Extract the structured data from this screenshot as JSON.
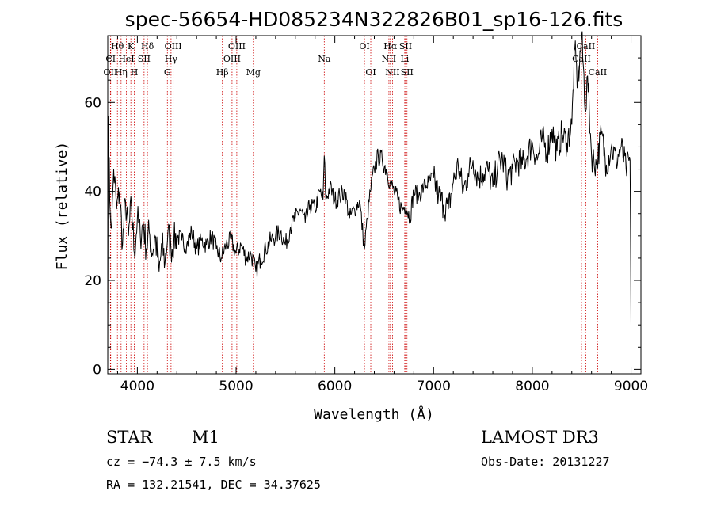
{
  "chart_data": {
    "type": "line",
    "title": "spec-56654-HD085234N322826B01_sp16-126.fits",
    "xlabel": "Wavelength (Å)",
    "ylabel": "Flux (relative)",
    "xlim": [
      3700,
      9100
    ],
    "ylim": [
      -1,
      75
    ],
    "xticks": [
      4000,
      5000,
      6000,
      7000,
      8000,
      9000
    ],
    "yticks": [
      0,
      20,
      40,
      60
    ],
    "grid": false,
    "legend": "none",
    "line_color": "#000000",
    "marker_color": "#cc0000",
    "series": [
      {
        "x": [
          3700,
          3705,
          3720,
          3740,
          3760,
          3790,
          3820,
          3850,
          3880,
          3910,
          3940,
          3970,
          4000,
          4030,
          4060,
          4090,
          4120,
          4150,
          4180,
          4220,
          4250,
          4280,
          4310,
          4340,
          4370,
          4400,
          4450,
          4500,
          4550,
          4600,
          4650,
          4700,
          4750,
          4800,
          4850,
          4900,
          4950,
          5000,
          5050,
          5100,
          5150,
          5200,
          5250,
          5300,
          5350,
          5400,
          5450,
          5500,
          5550,
          5600,
          5650,
          5700,
          5750,
          5800,
          5850,
          5880,
          5893,
          5910,
          5950,
          6000,
          6050,
          6100,
          6150,
          6200,
          6250,
          6300,
          6330,
          6360,
          6400,
          6440,
          6480,
          6520,
          6560,
          6600,
          6640,
          6680,
          6720,
          6760,
          6800,
          6850,
          6900,
          6950,
          7000,
          7050,
          7100,
          7150,
          7200,
          7250,
          7300,
          7350,
          7400,
          7450,
          7500,
          7550,
          7600,
          7650,
          7700,
          7750,
          7800,
          7850,
          7900,
          7950,
          8000,
          8050,
          8100,
          8150,
          8200,
          8250,
          8300,
          8350,
          8400,
          8430,
          8460,
          8500,
          8540,
          8560,
          8600,
          8650,
          8700,
          8750,
          8800,
          8850,
          8900,
          8950,
          8990,
          9000
        ],
        "y": [
          0,
          57,
          38,
          32,
          45,
          36,
          40,
          28,
          38,
          30,
          37,
          26,
          34,
          30,
          33,
          27,
          31,
          26,
          30,
          22,
          28,
          24,
          31,
          27,
          29,
          30,
          29,
          28,
          31,
          27,
          29,
          28,
          30,
          27,
          25,
          28,
          29,
          26,
          28,
          25,
          26,
          22,
          25,
          27,
          29,
          30,
          31,
          28,
          32,
          34,
          36,
          33,
          37,
          36,
          40,
          38,
          48,
          38,
          41,
          38,
          39,
          40,
          34,
          36,
          38,
          27,
          34,
          40,
          45,
          48,
          47,
          45,
          42,
          40,
          38,
          36,
          37,
          34,
          40,
          39,
          41,
          42,
          43,
          39,
          37,
          36,
          42,
          46,
          40,
          44,
          47,
          43,
          44,
          45,
          41,
          46,
          47,
          43,
          45,
          47,
          46,
          48,
          51,
          47,
          52,
          49,
          54,
          49,
          53,
          51,
          55,
          72,
          64,
          75,
          58,
          66,
          48,
          46,
          53,
          46,
          50,
          47,
          50,
          45,
          47,
          10
        ]
      }
    ],
    "line_markers": [
      {
        "label": "Hθ",
        "wavelength": 3798,
        "row": 0
      },
      {
        "label": "K",
        "wavelength": 3934,
        "row": 0
      },
      {
        "label": "Hδ",
        "wavelength": 4102,
        "row": 0
      },
      {
        "label": "OIII",
        "wavelength": 4363,
        "row": 0
      },
      {
        "label": "OIII",
        "wavelength": 5007,
        "row": 0
      },
      {
        "label": "OI",
        "wavelength": 6300,
        "row": 0
      },
      {
        "label": "Hα",
        "wavelength": 6563,
        "row": 0
      },
      {
        "label": "SII",
        "wavelength": 6717,
        "row": 0
      },
      {
        "label": "CaII",
        "wavelength": 8542,
        "row": 0
      },
      {
        "label": "CI",
        "wavelength": 3730,
        "row": 1
      },
      {
        "label": "HeI",
        "wavelength": 3889,
        "row": 1
      },
      {
        "label": "SII",
        "wavelength": 4068,
        "row": 1
      },
      {
        "label": "Hγ",
        "wavelength": 4341,
        "row": 1
      },
      {
        "label": "OIII",
        "wavelength": 4959,
        "row": 1
      },
      {
        "label": "Na",
        "wavelength": 5893,
        "row": 1
      },
      {
        "label": "NII",
        "wavelength": 6548,
        "row": 1
      },
      {
        "label": "Li",
        "wavelength": 6708,
        "row": 1
      },
      {
        "label": "CaII",
        "wavelength": 8498,
        "row": 1
      },
      {
        "label": "OII",
        "wavelength": 3727,
        "row": 2
      },
      {
        "label": "Hη",
        "wavelength": 3835,
        "row": 2
      },
      {
        "label": "H",
        "wavelength": 3969,
        "row": 2
      },
      {
        "label": "G",
        "wavelength": 4304,
        "row": 2
      },
      {
        "label": "Hβ",
        "wavelength": 4861,
        "row": 2
      },
      {
        "label": "Mg",
        "wavelength": 5175,
        "row": 2
      },
      {
        "label": "OI",
        "wavelength": 6364,
        "row": 2
      },
      {
        "label": "NII",
        "wavelength": 6584,
        "row": 2
      },
      {
        "label": "SII",
        "wavelength": 6731,
        "row": 2
      },
      {
        "label": "CaII",
        "wavelength": 8662,
        "row": 2
      }
    ]
  },
  "info": {
    "class": "STAR",
    "subclass": "M1",
    "survey": "LAMOST DR3",
    "cz": "cz = −74.3 ± 7.5 km/s",
    "obs_date": "Obs-Date: 20131227",
    "radec": "RA = 132.21541, DEC =  34.37625"
  }
}
